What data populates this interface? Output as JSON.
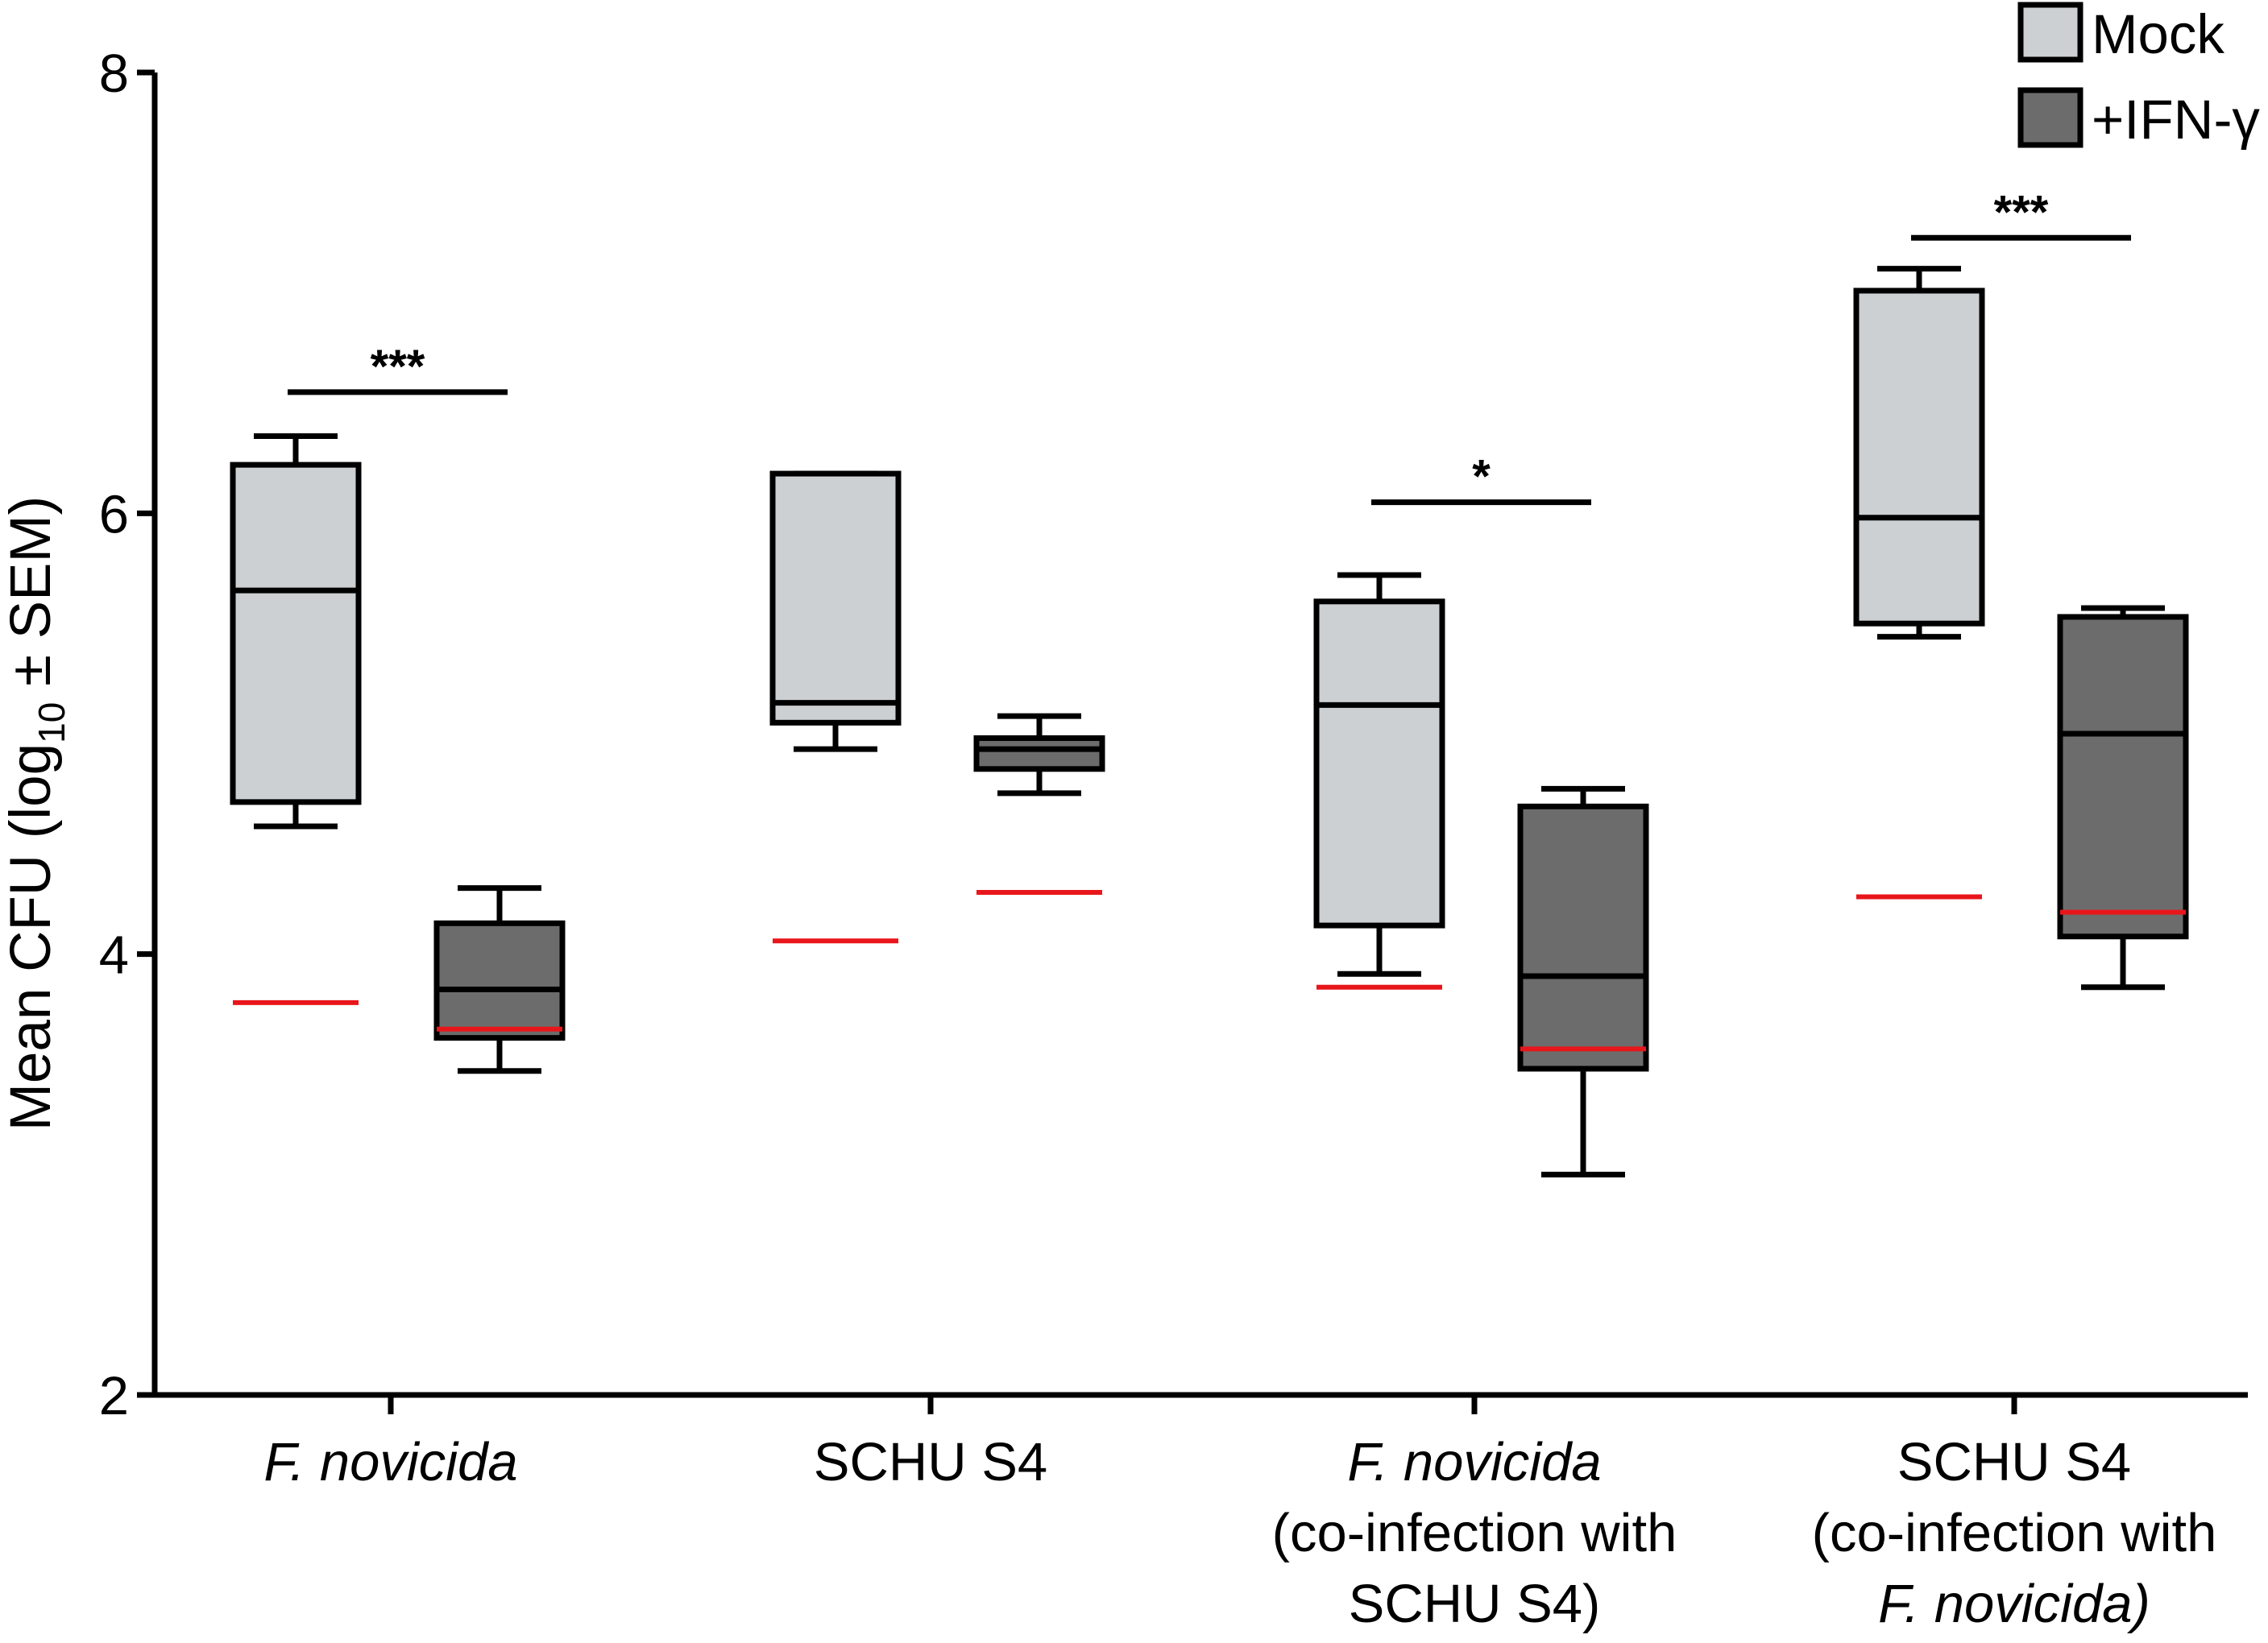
{
  "chart_data": {
    "type": "box",
    "title": "",
    "ylabel": {
      "prefix": "Mean CFU (log",
      "sub": "10",
      "suffix": " ± SEM)"
    },
    "ylim": [
      2,
      8
    ],
    "yticks": [
      2,
      4,
      6,
      8
    ],
    "grid": false,
    "legend": {
      "position": "top-right",
      "entries": [
        {
          "label": "Mock",
          "color": "#CDD0D3"
        },
        {
          "label": "+IFN-γ",
          "color": "#6B6C6B"
        }
      ]
    },
    "categories": [
      {
        "lines": [
          {
            "text": "F. novicida",
            "italic": true
          }
        ]
      },
      {
        "lines": [
          {
            "text": "SCHU S4",
            "italic": false
          }
        ]
      },
      {
        "lines": [
          {
            "text": "F. novicida",
            "italic": true
          },
          {
            "text": "(co-infection with",
            "italic": false
          },
          {
            "text": "SCHU S4)",
            "italic": false
          }
        ]
      },
      {
        "lines": [
          {
            "text": "SCHU S4",
            "italic": false
          },
          {
            "text": "(co-infection with",
            "italic": false
          },
          {
            "text": "F. novicida)",
            "italic": true
          }
        ]
      }
    ],
    "series": [
      {
        "name": "Mock",
        "color": "#CDD0D3",
        "boxes": [
          {
            "whisker_low": 4.58,
            "q1": 4.69,
            "median": 5.65,
            "q3": 6.22,
            "whisker_high": 6.35,
            "reference": 3.78
          },
          {
            "whisker_low": 4.93,
            "q1": 5.05,
            "median": 5.14,
            "q3": 6.18,
            "whisker_high": 6.18,
            "reference": 4.06
          },
          {
            "whisker_low": 3.91,
            "q1": 4.13,
            "median": 5.13,
            "q3": 5.6,
            "whisker_high": 5.72,
            "reference": 3.85
          },
          {
            "whisker_low": 5.44,
            "q1": 5.5,
            "median": 5.98,
            "q3": 7.01,
            "whisker_high": 7.11,
            "reference": 4.26
          }
        ]
      },
      {
        "name": "+IFN-γ",
        "color": "#6B6C6B",
        "boxes": [
          {
            "whisker_low": 3.47,
            "q1": 3.62,
            "median": 3.84,
            "q3": 4.14,
            "whisker_high": 4.3,
            "reference": 3.66
          },
          {
            "whisker_low": 4.73,
            "q1": 4.84,
            "median": 4.93,
            "q3": 4.98,
            "whisker_high": 5.08,
            "reference": 4.28
          },
          {
            "whisker_low": 3.0,
            "q1": 3.48,
            "median": 3.9,
            "q3": 4.67,
            "whisker_high": 4.75,
            "reference": 3.57
          },
          {
            "whisker_low": 3.85,
            "q1": 4.08,
            "median": 5.0,
            "q3": 5.53,
            "whisker_high": 5.57,
            "reference": 4.19
          }
        ]
      }
    ],
    "reference_line_color": "#E8161B",
    "significance": [
      {
        "category": 0,
        "label": "***",
        "y": 6.55
      },
      {
        "category": 2,
        "label": "*",
        "y": 6.05
      },
      {
        "category": 3,
        "label": "***",
        "y": 7.25
      }
    ]
  }
}
